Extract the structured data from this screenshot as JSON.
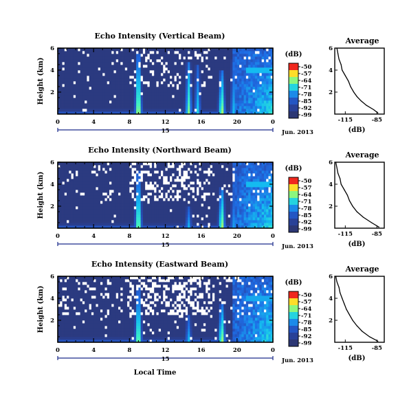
{
  "chart_data": [
    {
      "type": "heatmap",
      "title": "Echo Intensity (Vertical Beam)",
      "ylabel": "Height (km)",
      "x_ticks": [
        "0",
        "4",
        "8",
        "12",
        "16",
        "20",
        "0"
      ],
      "y_ticks": [
        "2",
        "4",
        "6"
      ],
      "xlim": [
        0,
        24
      ],
      "ylim": [
        0,
        6
      ],
      "date_label": "Jun. 2013",
      "day_label": "15",
      "colorbar": {
        "unit": "(dB)",
        "ticks": [
          "-50",
          "-57",
          "-64",
          "-71",
          "-78",
          "-85",
          "-92",
          "-99"
        ]
      },
      "echo_columns": [
        {
          "time": 9.0,
          "top": 5.6,
          "peak": 0.9
        },
        {
          "time": 14.6,
          "top": 4.8,
          "peak": 0.75
        },
        {
          "time": 15.6,
          "top": 4.5,
          "peak": 0.6
        },
        {
          "time": 18.3,
          "top": 4.0,
          "peak": 0.85
        },
        {
          "time": 19.6,
          "top": 5.0,
          "peak": 0.55
        }
      ],
      "bright_layer": {
        "start": 19.5,
        "end": 24,
        "height": 4.0,
        "peak": 0.8
      },
      "no_data_fraction": 0.06,
      "profile": {
        "title": "Average",
        "xlabel": "(dB)",
        "x_ticks": [
          "-115",
          "-85"
        ],
        "y_ticks": [
          "2",
          "4",
          "6"
        ],
        "xlim": [
          -125,
          -78
        ],
        "ylim": [
          0,
          6
        ],
        "points": [
          {
            "height": 0.1,
            "db": -84
          },
          {
            "height": 0.4,
            "db": -88
          },
          {
            "height": 0.8,
            "db": -95
          },
          {
            "height": 1.2,
            "db": -100
          },
          {
            "height": 1.6,
            "db": -104
          },
          {
            "height": 2.0,
            "db": -107
          },
          {
            "height": 2.5,
            "db": -110
          },
          {
            "height": 3.0,
            "db": -112
          },
          {
            "height": 3.5,
            "db": -115
          },
          {
            "height": 4.0,
            "db": -118
          },
          {
            "height": 4.5,
            "db": -119
          },
          {
            "height": 5.0,
            "db": -121
          },
          {
            "height": 5.5,
            "db": -122
          },
          {
            "height": 6.0,
            "db": -123
          }
        ]
      }
    },
    {
      "type": "heatmap",
      "title": "Echo Intensity (Northward Beam)",
      "ylabel": "Height (km)",
      "x_ticks": [
        "0",
        "4",
        "8",
        "12",
        "16",
        "20",
        "0"
      ],
      "y_ticks": [
        "2",
        "4",
        "6"
      ],
      "xlim": [
        0,
        24
      ],
      "ylim": [
        0,
        6
      ],
      "date_label": "Jun. 2013",
      "day_label": "15",
      "colorbar": {
        "unit": "(dB)",
        "ticks": [
          "-50",
          "-57",
          "-64",
          "-71",
          "-78",
          "-85",
          "-92",
          "-99"
        ]
      },
      "echo_columns": [
        {
          "time": 9.0,
          "top": 5.2,
          "peak": 0.85
        },
        {
          "time": 14.6,
          "top": 2.0,
          "peak": 0.55
        },
        {
          "time": 18.3,
          "top": 3.8,
          "peak": 0.85
        },
        {
          "time": 19.6,
          "top": 3.5,
          "peak": 0.5
        }
      ],
      "bright_layer": {
        "start": 19.5,
        "end": 24,
        "height": 4.0,
        "peak": 0.8
      },
      "no_data_fraction": 0.1,
      "profile": {
        "title": "Average",
        "xlabel": "(dB)",
        "x_ticks": [
          "-115",
          "-85"
        ],
        "y_ticks": [
          "2",
          "4",
          "6"
        ],
        "xlim": [
          -125,
          -78
        ],
        "ylim": [
          0,
          6
        ],
        "points": [
          {
            "height": 0.1,
            "db": -83
          },
          {
            "height": 0.5,
            "db": -90
          },
          {
            "height": 1.0,
            "db": -98
          },
          {
            "height": 1.5,
            "db": -104
          },
          {
            "height": 2.0,
            "db": -108
          },
          {
            "height": 2.5,
            "db": -111
          },
          {
            "height": 3.0,
            "db": -113
          },
          {
            "height": 3.5,
            "db": -116
          },
          {
            "height": 4.0,
            "db": -119
          },
          {
            "height": 4.5,
            "db": -120
          },
          {
            "height": 5.0,
            "db": -122
          },
          {
            "height": 5.5,
            "db": -123
          },
          {
            "height": 6.0,
            "db": -124
          }
        ]
      }
    },
    {
      "type": "heatmap",
      "title": "Echo Intensity (Eastward Beam)",
      "ylabel": "Height (km)",
      "xlabel": "Local Time",
      "x_ticks": [
        "0",
        "4",
        "8",
        "12",
        "16",
        "20",
        "0"
      ],
      "y_ticks": [
        "2",
        "4",
        "6"
      ],
      "xlim": [
        0,
        24
      ],
      "ylim": [
        0,
        6
      ],
      "date_label": "Jun. 2013",
      "day_label": "15",
      "colorbar": {
        "unit": "(dB)",
        "ticks": [
          "-50",
          "-57",
          "-64",
          "-71",
          "-78",
          "-85",
          "-92",
          "-99"
        ]
      },
      "echo_columns": [
        {
          "time": 9.0,
          "top": 5.0,
          "peak": 0.85
        },
        {
          "time": 14.6,
          "top": 2.5,
          "peak": 0.55
        },
        {
          "time": 18.3,
          "top": 3.5,
          "peak": 0.85
        }
      ],
      "bright_layer": {
        "start": 19.5,
        "end": 24,
        "height": 4.0,
        "peak": 0.75
      },
      "no_data_fraction": 0.14,
      "profile": {
        "title": "Average",
        "xlabel": "(dB)",
        "x_ticks": [
          "-115",
          "-85"
        ],
        "y_ticks": [
          "2",
          "4",
          "6"
        ],
        "xlim": [
          -125,
          -78
        ],
        "ylim": [
          0,
          6
        ],
        "points": [
          {
            "height": 0.1,
            "db": -84
          },
          {
            "height": 0.5,
            "db": -92
          },
          {
            "height": 1.0,
            "db": -99
          },
          {
            "height": 1.5,
            "db": -104
          },
          {
            "height": 2.0,
            "db": -108
          },
          {
            "height": 2.5,
            "db": -111
          },
          {
            "height": 3.0,
            "db": -114
          },
          {
            "height": 3.5,
            "db": -116
          },
          {
            "height": 4.0,
            "db": -118
          },
          {
            "height": 4.5,
            "db": -120
          },
          {
            "height": 5.0,
            "db": -121
          },
          {
            "height": 5.5,
            "db": -123
          },
          {
            "height": 6.0,
            "db": -124
          }
        ]
      }
    }
  ]
}
